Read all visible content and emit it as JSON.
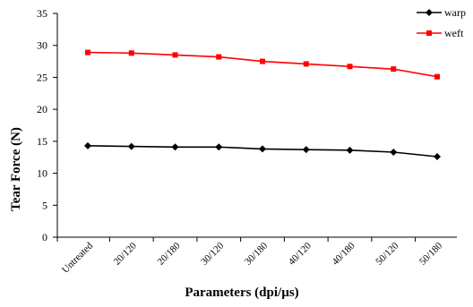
{
  "chart_data": {
    "type": "line",
    "categories": [
      "Untreated",
      "20/120",
      "20/180",
      "30/120",
      "30/180",
      "40/120",
      "40/180",
      "50/120",
      "50/180"
    ],
    "series": [
      {
        "name": "warp",
        "color": "#000000",
        "marker": "diamond",
        "values": [
          14.3,
          14.2,
          14.1,
          14.1,
          13.8,
          13.7,
          13.6,
          13.3,
          12.6
        ]
      },
      {
        "name": "weft",
        "color": "#ff0000",
        "marker": "square",
        "values": [
          28.9,
          28.8,
          28.5,
          28.2,
          27.5,
          27.1,
          26.7,
          26.3,
          25.1
        ]
      }
    ],
    "xlabel": "Parameters (dpi/µs)",
    "ylabel": "Tear Force (N)",
    "ylim": [
      0,
      35
    ],
    "yticks": [
      0,
      5,
      10,
      15,
      20,
      25,
      30,
      35
    ],
    "grid": false,
    "legend_position": "top-right"
  }
}
